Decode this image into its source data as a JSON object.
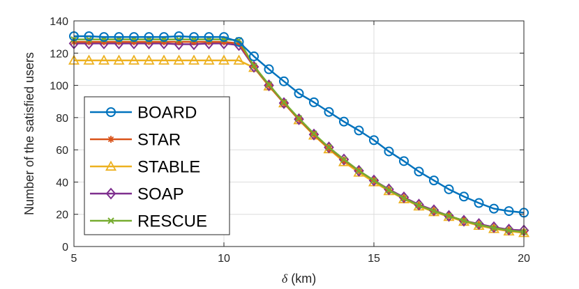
{
  "chart_data": {
    "type": "line",
    "title": "",
    "xlabel_symbol": "δ",
    "xlabel_unit": "(km)",
    "ylabel": "Number of the satisfied users",
    "xlim": [
      5,
      20
    ],
    "ylim": [
      0,
      140
    ],
    "xticks": [
      5,
      10,
      15,
      20
    ],
    "yticks": [
      0,
      20,
      40,
      60,
      80,
      100,
      120,
      140
    ],
    "grid": true,
    "legend_position": "lower-left",
    "series": [
      {
        "name": "BOARD",
        "color": "#0072BD",
        "marker": "circle",
        "x": [
          5,
          5.5,
          6,
          6.5,
          7,
          7.5,
          8,
          8.5,
          9,
          9.5,
          10,
          10.5,
          11,
          11.5,
          12,
          12.5,
          13,
          13.5,
          14,
          14.5,
          15,
          15.5,
          16,
          16.5,
          17,
          17.5,
          18,
          18.5,
          19,
          19.5,
          20
        ],
        "y": [
          130.5,
          130.5,
          130,
          130,
          130,
          130,
          130,
          130.5,
          130,
          130,
          130,
          127,
          118,
          110,
          102.5,
          95,
          89.5,
          83.5,
          77.5,
          72,
          66,
          59,
          53,
          46.5,
          41,
          35.5,
          31,
          27,
          23.5,
          22,
          21
        ]
      },
      {
        "name": "STAR",
        "color": "#D95319",
        "marker": "asterisk",
        "x": [
          5,
          5.5,
          6,
          6.5,
          7,
          7.5,
          8,
          8.5,
          9,
          9.5,
          10,
          10.5,
          11,
          11.5,
          12,
          12.5,
          13,
          13.5,
          14,
          14.5,
          15,
          15.5,
          16,
          16.5,
          17,
          17.5,
          18,
          18.5,
          19,
          19.5,
          20
        ],
        "y": [
          127,
          127,
          127,
          127,
          127,
          127,
          127,
          127,
          127,
          127,
          127,
          126,
          112,
          100,
          89,
          79,
          69.5,
          61,
          53.5,
          47,
          41,
          35,
          30,
          25.5,
          22,
          19,
          16,
          13.5,
          11.5,
          10,
          9
        ]
      },
      {
        "name": "STABLE",
        "color": "#EDB120",
        "marker": "triangle",
        "x": [
          5,
          5.5,
          6,
          6.5,
          7,
          7.5,
          8,
          8.5,
          9,
          9.5,
          10,
          10.5,
          11,
          11.5,
          12,
          12.5,
          13,
          13.5,
          14,
          14.5,
          15,
          15.5,
          16,
          16.5,
          17,
          17.5,
          18,
          18.5,
          19,
          19.5,
          20
        ],
        "y": [
          115.5,
          115.5,
          115.5,
          115.5,
          115.5,
          115.5,
          115.5,
          115.5,
          115.5,
          115.5,
          115.5,
          115.5,
          111,
          99.5,
          89,
          78.5,
          69,
          60.5,
          52.5,
          46,
          40,
          34.5,
          29.5,
          25,
          21.5,
          18.5,
          15.5,
          13,
          11,
          9.5,
          8.5
        ]
      },
      {
        "name": "SOAP",
        "color": "#7E2F8E",
        "marker": "diamond",
        "x": [
          5,
          5.5,
          6,
          6.5,
          7,
          7.5,
          8,
          8.5,
          9,
          9.5,
          10,
          10.5,
          11,
          11.5,
          12,
          12.5,
          13,
          13.5,
          14,
          14.5,
          15,
          15.5,
          16,
          16.5,
          17,
          17.5,
          18,
          18.5,
          19,
          19.5,
          20
        ],
        "y": [
          126,
          126,
          126,
          126,
          126,
          126,
          126,
          125.5,
          125.5,
          126,
          126,
          125,
          111.5,
          100,
          89,
          79,
          69.5,
          61.5,
          54,
          47,
          41,
          35.5,
          30.5,
          26,
          22.5,
          19,
          16,
          14,
          12,
          10.5,
          10
        ]
      },
      {
        "name": "RESCUE",
        "color": "#77AC30",
        "marker": "cross",
        "x": [
          5,
          5.5,
          6,
          6.5,
          7,
          7.5,
          8,
          8.5,
          9,
          9.5,
          10,
          10.5,
          11,
          11.5,
          12,
          12.5,
          13,
          13.5,
          14,
          14.5,
          15,
          15.5,
          16,
          16.5,
          17,
          17.5,
          18,
          18.5,
          19,
          19.5,
          20
        ],
        "y": [
          128.5,
          128.5,
          128.5,
          128.5,
          128.5,
          128.5,
          128.5,
          128.5,
          128.5,
          128.5,
          128.5,
          128,
          112,
          100.5,
          89.5,
          79.5,
          70,
          61.5,
          54,
          47,
          41,
          35,
          30,
          25.5,
          22,
          19,
          16,
          13.5,
          11.5,
          10,
          9
        ]
      }
    ]
  }
}
